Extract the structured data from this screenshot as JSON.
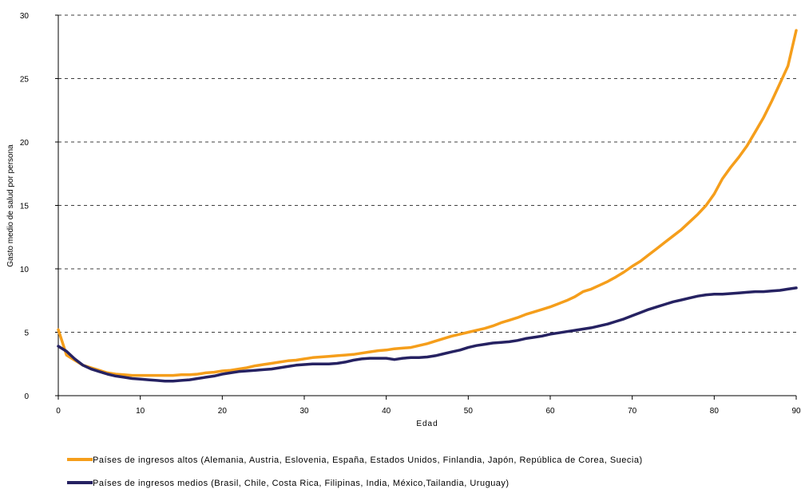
{
  "chart_data": {
    "type": "line",
    "xlabel": "Edad",
    "ylabel": "Gasto medio de salud por persona",
    "xlim": [
      0,
      90
    ],
    "ylim": [
      0,
      30
    ],
    "x_ticks": [
      "0",
      "10",
      "20",
      "30",
      "40",
      "50",
      "60",
      "70",
      "80",
      "90"
    ],
    "y_ticks": [
      "0",
      "5",
      "10",
      "15",
      "20",
      "25",
      "30"
    ],
    "grid": "horizontal dashed",
    "legend_position": "bottom",
    "colors": {
      "high": "#F59E1B",
      "medium": "#262262"
    },
    "series": [
      {
        "name": "Países de ingresos altos (Alemania, Austria, Eslovenia, España, Estados Unidos, Finlandia, Japón, República de Corea, Suecia)",
        "points": [
          [
            0,
            5.2
          ],
          [
            1,
            3.2
          ],
          [
            2,
            2.8
          ],
          [
            3,
            2.4
          ],
          [
            4,
            2.2
          ],
          [
            5,
            2.0
          ],
          [
            6,
            1.8
          ],
          [
            7,
            1.7
          ],
          [
            8,
            1.65
          ],
          [
            9,
            1.6
          ],
          [
            10,
            1.6
          ],
          [
            11,
            1.6
          ],
          [
            12,
            1.6
          ],
          [
            13,
            1.6
          ],
          [
            14,
            1.6
          ],
          [
            15,
            1.65
          ],
          [
            16,
            1.65
          ],
          [
            17,
            1.7
          ],
          [
            18,
            1.8
          ],
          [
            19,
            1.85
          ],
          [
            20,
            1.95
          ],
          [
            21,
            2.0
          ],
          [
            22,
            2.1
          ],
          [
            23,
            2.2
          ],
          [
            24,
            2.35
          ],
          [
            25,
            2.45
          ],
          [
            26,
            2.55
          ],
          [
            27,
            2.65
          ],
          [
            28,
            2.75
          ],
          [
            29,
            2.8
          ],
          [
            30,
            2.9
          ],
          [
            31,
            3.0
          ],
          [
            32,
            3.05
          ],
          [
            33,
            3.1
          ],
          [
            34,
            3.15
          ],
          [
            35,
            3.2
          ],
          [
            36,
            3.25
          ],
          [
            37,
            3.35
          ],
          [
            38,
            3.45
          ],
          [
            39,
            3.55
          ],
          [
            40,
            3.6
          ],
          [
            41,
            3.7
          ],
          [
            42,
            3.75
          ],
          [
            43,
            3.8
          ],
          [
            44,
            3.95
          ],
          [
            45,
            4.1
          ],
          [
            46,
            4.3
          ],
          [
            47,
            4.5
          ],
          [
            48,
            4.7
          ],
          [
            49,
            4.85
          ],
          [
            50,
            5.0
          ],
          [
            51,
            5.15
          ],
          [
            52,
            5.3
          ],
          [
            53,
            5.5
          ],
          [
            54,
            5.75
          ],
          [
            55,
            5.95
          ],
          [
            56,
            6.15
          ],
          [
            57,
            6.4
          ],
          [
            58,
            6.6
          ],
          [
            59,
            6.8
          ],
          [
            60,
            7.0
          ],
          [
            61,
            7.25
          ],
          [
            62,
            7.5
          ],
          [
            63,
            7.8
          ],
          [
            64,
            8.2
          ],
          [
            65,
            8.4
          ],
          [
            66,
            8.7
          ],
          [
            67,
            9.0
          ],
          [
            68,
            9.35
          ],
          [
            69,
            9.75
          ],
          [
            70,
            10.2
          ],
          [
            71,
            10.6
          ],
          [
            72,
            11.1
          ],
          [
            73,
            11.6
          ],
          [
            74,
            12.1
          ],
          [
            75,
            12.6
          ],
          [
            76,
            13.1
          ],
          [
            77,
            13.7
          ],
          [
            78,
            14.3
          ],
          [
            79,
            15.0
          ],
          [
            80,
            15.9
          ],
          [
            81,
            17.1
          ],
          [
            82,
            18.0
          ],
          [
            83,
            18.8
          ],
          [
            84,
            19.7
          ],
          [
            85,
            20.8
          ],
          [
            86,
            21.9
          ],
          [
            87,
            23.2
          ],
          [
            88,
            24.6
          ],
          [
            89,
            26.0
          ],
          [
            90,
            28.8
          ]
        ]
      },
      {
        "name": "Países de ingresos medios (Brasil, Chile, Costa Rica, Filipinas, India, México,Tailandia, Uruguay)",
        "points": [
          [
            0,
            3.9
          ],
          [
            1,
            3.5
          ],
          [
            2,
            2.9
          ],
          [
            3,
            2.4
          ],
          [
            4,
            2.1
          ],
          [
            5,
            1.9
          ],
          [
            6,
            1.7
          ],
          [
            7,
            1.55
          ],
          [
            8,
            1.45
          ],
          [
            9,
            1.35
          ],
          [
            10,
            1.3
          ],
          [
            11,
            1.25
          ],
          [
            12,
            1.2
          ],
          [
            13,
            1.15
          ],
          [
            14,
            1.15
          ],
          [
            15,
            1.2
          ],
          [
            16,
            1.25
          ],
          [
            17,
            1.35
          ],
          [
            18,
            1.45
          ],
          [
            19,
            1.55
          ],
          [
            20,
            1.7
          ],
          [
            21,
            1.8
          ],
          [
            22,
            1.9
          ],
          [
            23,
            1.95
          ],
          [
            24,
            2.0
          ],
          [
            25,
            2.05
          ],
          [
            26,
            2.1
          ],
          [
            27,
            2.2
          ],
          [
            28,
            2.3
          ],
          [
            29,
            2.4
          ],
          [
            30,
            2.45
          ],
          [
            31,
            2.5
          ],
          [
            32,
            2.5
          ],
          [
            33,
            2.5
          ],
          [
            34,
            2.55
          ],
          [
            35,
            2.65
          ],
          [
            36,
            2.8
          ],
          [
            37,
            2.9
          ],
          [
            38,
            2.95
          ],
          [
            39,
            2.95
          ],
          [
            40,
            2.95
          ],
          [
            41,
            2.85
          ],
          [
            42,
            2.95
          ],
          [
            43,
            3.0
          ],
          [
            44,
            3.0
          ],
          [
            45,
            3.05
          ],
          [
            46,
            3.15
          ],
          [
            47,
            3.3
          ],
          [
            48,
            3.45
          ],
          [
            49,
            3.6
          ],
          [
            50,
            3.8
          ],
          [
            51,
            3.95
          ],
          [
            52,
            4.05
          ],
          [
            53,
            4.15
          ],
          [
            54,
            4.2
          ],
          [
            55,
            4.25
          ],
          [
            56,
            4.35
          ],
          [
            57,
            4.5
          ],
          [
            58,
            4.6
          ],
          [
            59,
            4.7
          ],
          [
            60,
            4.85
          ],
          [
            61,
            4.95
          ],
          [
            62,
            5.05
          ],
          [
            63,
            5.15
          ],
          [
            64,
            5.25
          ],
          [
            65,
            5.35
          ],
          [
            66,
            5.5
          ],
          [
            67,
            5.65
          ],
          [
            68,
            5.85
          ],
          [
            69,
            6.05
          ],
          [
            70,
            6.3
          ],
          [
            71,
            6.55
          ],
          [
            72,
            6.8
          ],
          [
            73,
            7.0
          ],
          [
            74,
            7.2
          ],
          [
            75,
            7.4
          ],
          [
            76,
            7.55
          ],
          [
            77,
            7.7
          ],
          [
            78,
            7.85
          ],
          [
            79,
            7.95
          ],
          [
            80,
            8.0
          ],
          [
            81,
            8.0
          ],
          [
            82,
            8.05
          ],
          [
            83,
            8.1
          ],
          [
            84,
            8.15
          ],
          [
            85,
            8.2
          ],
          [
            86,
            8.2
          ],
          [
            87,
            8.25
          ],
          [
            88,
            8.3
          ],
          [
            89,
            8.4
          ],
          [
            90,
            8.5
          ]
        ]
      }
    ]
  }
}
